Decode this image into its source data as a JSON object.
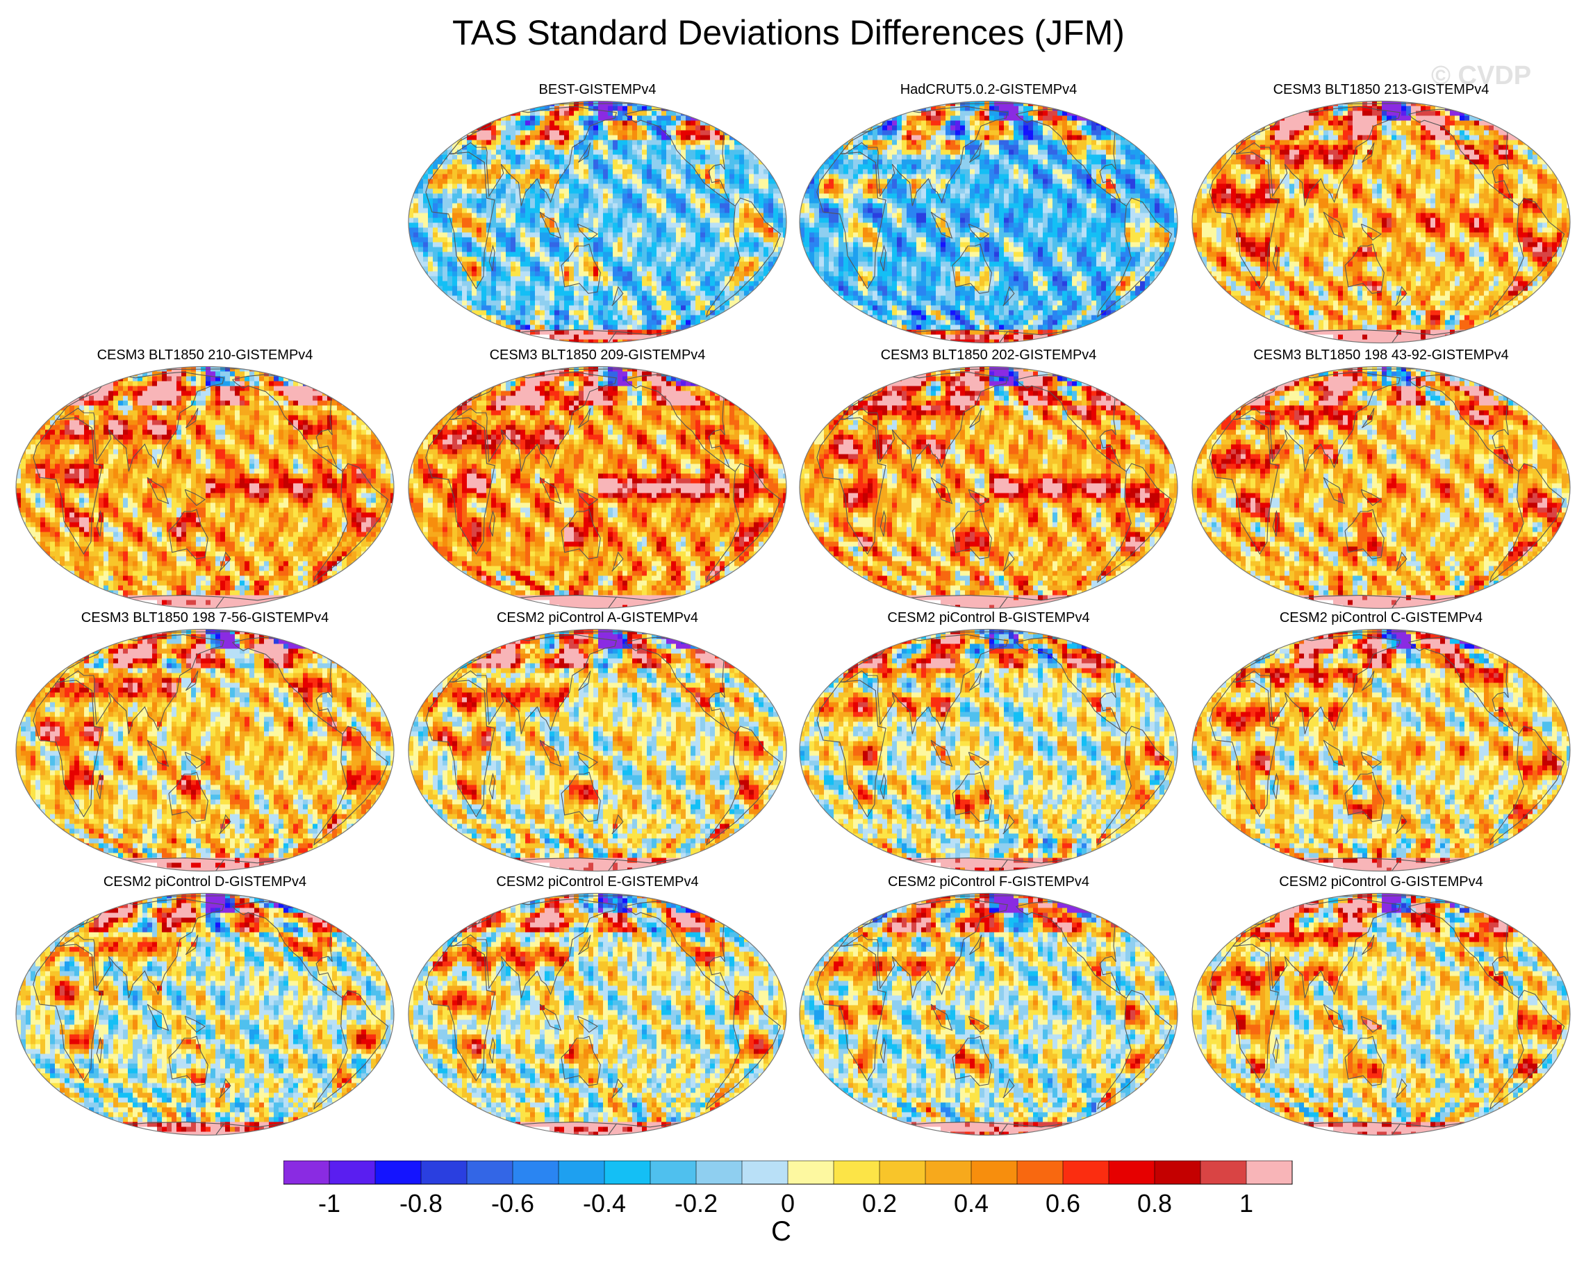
{
  "title": "TAS Standard Deviations Differences (JFM)",
  "watermark": "© CVDP",
  "colors": {
    "coast": "#555555",
    "missing": "#ffffff",
    "outline": "#777777"
  },
  "panels": [
    {
      "title": "BEST-GISTEMPv4",
      "row": 0,
      "col": 1,
      "bias": -0.2,
      "seed": 1,
      "enso": 0.0
    },
    {
      "title": "HadCRUT5.0.2-GISTEMPv4",
      "row": 0,
      "col": 2,
      "bias": -0.3,
      "seed": 2,
      "enso": 0.0
    },
    {
      "title": "CESM3 BLT1850 213-GISTEMPv4",
      "row": 0,
      "col": 3,
      "bias": 0.25,
      "seed": 3,
      "enso": 0.4
    },
    {
      "title": "CESM3 BLT1850 210-GISTEMPv4",
      "row": 1,
      "col": 0,
      "bias": 0.3,
      "seed": 4,
      "enso": 0.6
    },
    {
      "title": "CESM3 BLT1850 209-GISTEMPv4",
      "row": 1,
      "col": 1,
      "bias": 0.35,
      "seed": 5,
      "enso": 0.9
    },
    {
      "title": "CESM3 BLT1850 202-GISTEMPv4",
      "row": 1,
      "col": 2,
      "bias": 0.3,
      "seed": 6,
      "enso": 0.8
    },
    {
      "title": "CESM3 BLT1850 198 43-92-GISTEMPv4",
      "row": 1,
      "col": 3,
      "bias": 0.25,
      "seed": 7,
      "enso": 0.2
    },
    {
      "title": "CESM3 BLT1850 198 7-56-GISTEMPv4",
      "row": 2,
      "col": 0,
      "bias": 0.2,
      "seed": 8,
      "enso": 0.1
    },
    {
      "title": "CESM2 piControl A-GISTEMPv4",
      "row": 2,
      "col": 1,
      "bias": 0.1,
      "seed": 9,
      "enso": 0.0
    },
    {
      "title": "CESM2 piControl B-GISTEMPv4",
      "row": 2,
      "col": 2,
      "bias": 0.05,
      "seed": 10,
      "enso": 0.0
    },
    {
      "title": "CESM2 piControl C-GISTEMPv4",
      "row": 2,
      "col": 3,
      "bias": 0.15,
      "seed": 11,
      "enso": 0.2
    },
    {
      "title": "CESM2 piControl D-GISTEMPv4",
      "row": 3,
      "col": 0,
      "bias": 0.0,
      "seed": 12,
      "enso": 0.0
    },
    {
      "title": "CESM2 piControl E-GISTEMPv4",
      "row": 3,
      "col": 1,
      "bias": 0.05,
      "seed": 13,
      "enso": 0.0
    },
    {
      "title": "CESM2 piControl F-GISTEMPv4",
      "row": 3,
      "col": 2,
      "bias": 0.0,
      "seed": 14,
      "enso": 0.0
    },
    {
      "title": "CESM2 piControl G-GISTEMPv4",
      "row": 3,
      "col": 3,
      "bias": 0.1,
      "seed": 15,
      "enso": 0.0
    }
  ],
  "colorbar": {
    "unit": "C",
    "min": -1.1,
    "max": 1.1,
    "step": 0.1,
    "colors": [
      "#8a2be2",
      "#5a1ef0",
      "#1414ff",
      "#2a3fe0",
      "#3366e6",
      "#2a85f2",
      "#1ea0f0",
      "#14bff5",
      "#4fc0ee",
      "#8fcff0",
      "#b9e0f7",
      "#fdf8a0",
      "#fce447",
      "#f8c52a",
      "#f7a91c",
      "#f78e0d",
      "#f86810",
      "#fb2d10",
      "#e60000",
      "#c40000",
      "#d94444",
      "#f8b5b8"
    ],
    "tick_labels": [
      "-1",
      "-0.8",
      "-0.6",
      "-0.4",
      "-0.2",
      "0",
      "0.2",
      "0.4",
      "0.6",
      "0.8",
      "1"
    ]
  }
}
